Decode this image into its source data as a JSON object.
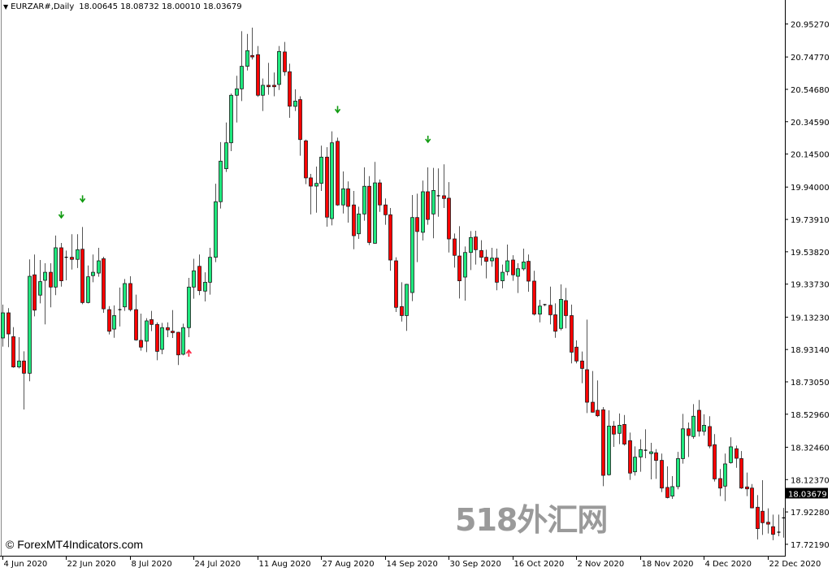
{
  "header": {
    "symbol": "EURZAR#,Daily",
    "ohlc": "18.00645 18.08732 18.00010 18.03679"
  },
  "copyright": "© ForexMT4Indicators.com",
  "watermark": "518外汇网",
  "colors": {
    "bull": "#1ee87d",
    "bear": "#ff0000",
    "outline": "#1a1a1a",
    "wick": "#555555",
    "signal_sell": "#109a10",
    "signal_buy": "#ff2040",
    "price_tag_bg": "#000000"
  },
  "chart_data": {
    "type": "candlestick",
    "title": "EURZAR#,Daily",
    "current_price": "18.03679",
    "y_ticks": [
      "20.95270",
      "20.74770",
      "20.54680",
      "20.34590",
      "20.14500",
      "19.94000",
      "19.73910",
      "19.53820",
      "19.33730",
      "19.13230",
      "18.93140",
      "18.73050",
      "18.52960",
      "18.32460",
      "18.12370",
      "17.92280",
      "17.72190"
    ],
    "x_tick_labels": [
      "4 Jun 2020",
      "22 Jun 2020",
      "8 Jul 2020",
      "24 Jul 2020",
      "11 Aug 2020",
      "27 Aug 2020",
      "14 Sep 2020",
      "30 Sep 2020",
      "16 Oct 2020",
      "2 Nov 2020",
      "18 Nov 2020",
      "4 Dec 2020",
      "22 Dec 2020"
    ],
    "x_tick_every_bars": 12,
    "ohlc": [
      [
        19.003,
        19.21,
        18.949,
        19.159
      ],
      [
        19.159,
        19.188,
        18.946,
        19.028
      ],
      [
        19.011,
        19.07,
        18.818,
        18.823
      ],
      [
        18.823,
        19.008,
        18.814,
        18.86
      ],
      [
        18.86,
        18.92,
        18.559,
        18.784
      ],
      [
        18.784,
        19.491,
        18.734,
        19.386
      ],
      [
        19.395,
        19.521,
        19.137,
        19.176
      ],
      [
        19.269,
        19.487,
        19.218,
        19.353
      ],
      [
        19.361,
        19.467,
        19.087,
        19.411
      ],
      [
        19.411,
        19.467,
        19.193,
        19.319
      ],
      [
        19.319,
        19.639,
        19.269,
        19.563
      ],
      [
        19.563,
        19.593,
        19.322,
        19.358
      ],
      [
        19.504,
        19.546,
        19.361,
        19.502
      ],
      [
        19.504,
        19.647,
        19.428,
        19.491
      ],
      [
        19.491,
        19.647,
        19.437,
        19.551
      ],
      [
        19.554,
        19.692,
        19.213,
        19.223
      ],
      [
        19.223,
        19.453,
        19.218,
        19.383
      ],
      [
        19.39,
        19.521,
        19.349,
        19.411
      ],
      [
        19.406,
        19.563,
        19.383,
        19.482
      ],
      [
        19.495,
        19.507,
        19.159,
        19.184
      ],
      [
        19.179,
        19.201,
        19.025,
        19.045
      ],
      [
        19.058,
        19.205,
        19.004,
        19.142
      ],
      [
        19.179,
        19.316,
        19.075,
        19.177
      ],
      [
        19.196,
        19.369,
        19.171,
        19.341
      ],
      [
        19.341,
        19.386,
        19.168,
        19.179
      ],
      [
        19.179,
        19.272,
        18.986,
        18.991
      ],
      [
        18.988,
        19.154,
        18.924,
        18.946
      ],
      [
        18.983,
        19.126,
        18.915,
        19.109
      ],
      [
        19.117,
        19.171,
        19.046,
        19.087
      ],
      [
        19.087,
        19.1,
        18.865,
        18.92
      ],
      [
        18.932,
        19.097,
        18.902,
        19.067
      ],
      [
        19.067,
        19.1,
        19.008,
        19.053
      ],
      [
        19.045,
        19.176,
        19.003,
        19.036
      ],
      [
        19.038,
        19.041,
        18.835,
        18.898
      ],
      [
        18.902,
        19.092,
        18.895,
        19.067
      ],
      [
        19.067,
        19.376,
        19.008,
        19.319
      ],
      [
        19.319,
        19.495,
        19.247,
        19.42
      ],
      [
        19.448,
        19.521,
        19.269,
        19.297
      ],
      [
        19.294,
        19.411,
        19.23,
        19.349
      ],
      [
        19.349,
        19.563,
        19.272,
        19.504
      ],
      [
        19.504,
        19.961,
        19.474,
        19.849
      ],
      [
        19.849,
        20.219,
        19.807,
        20.101
      ],
      [
        20.054,
        20.341,
        20.034,
        20.215
      ],
      [
        20.215,
        20.521,
        20.163,
        20.51
      ],
      [
        20.51,
        20.631,
        20.341,
        20.55
      ],
      [
        20.55,
        20.908,
        20.474,
        20.69
      ],
      [
        20.69,
        20.891,
        20.664,
        20.787
      ],
      [
        20.757,
        20.93,
        20.732,
        20.748
      ],
      [
        20.762,
        20.816,
        20.5,
        20.51
      ],
      [
        20.51,
        20.614,
        20.412,
        20.572
      ],
      [
        20.572,
        20.711,
        20.513,
        20.563
      ],
      [
        20.572,
        20.651,
        20.504,
        20.563
      ],
      [
        20.577,
        20.816,
        20.543,
        20.782
      ],
      [
        20.779,
        20.841,
        20.631,
        20.656
      ],
      [
        20.656,
        20.706,
        20.37,
        20.442
      ],
      [
        20.441,
        20.547,
        20.412,
        20.474
      ],
      [
        20.483,
        20.504,
        20.135,
        20.235
      ],
      [
        20.227,
        20.235,
        19.958,
        19.997
      ],
      [
        19.997,
        20.022,
        19.77,
        19.946
      ],
      [
        19.946,
        20.067,
        19.781,
        19.963
      ],
      [
        19.963,
        20.197,
        19.916,
        20.126
      ],
      [
        20.126,
        20.188,
        19.694,
        19.753
      ],
      [
        19.744,
        20.286,
        19.702,
        20.215
      ],
      [
        20.224,
        20.247,
        19.823,
        19.829
      ],
      [
        19.829,
        20.037,
        19.776,
        19.929
      ],
      [
        19.929,
        19.975,
        19.719,
        19.82
      ],
      [
        19.829,
        19.916,
        19.554,
        19.638
      ],
      [
        19.65,
        19.818,
        19.618,
        19.773
      ],
      [
        19.773,
        20.062,
        19.731,
        19.945
      ],
      [
        19.945,
        20.008,
        19.58,
        19.596
      ],
      [
        19.591,
        20.096,
        19.588,
        19.966
      ],
      [
        19.966,
        19.987,
        19.786,
        19.829
      ],
      [
        19.829,
        19.869,
        19.706,
        19.768
      ],
      [
        19.768,
        19.81,
        19.42,
        19.487
      ],
      [
        19.482,
        19.504,
        19.164,
        19.193
      ],
      [
        19.198,
        19.349,
        19.105,
        19.142
      ],
      [
        19.142,
        19.339,
        19.047,
        19.336
      ],
      [
        19.285,
        19.891,
        19.232,
        19.751
      ],
      [
        19.751,
        19.899,
        19.474,
        19.664
      ],
      [
        19.659,
        19.98,
        19.608,
        19.911
      ],
      [
        19.911,
        20.062,
        19.706,
        19.739
      ],
      [
        19.773,
        20.059,
        19.622,
        19.919
      ],
      [
        19.886,
        20.056,
        19.756,
        19.884
      ],
      [
        19.886,
        20.081,
        19.81,
        19.869
      ],
      [
        19.871,
        19.971,
        19.534,
        19.618
      ],
      [
        19.618,
        19.652,
        19.44,
        19.516
      ],
      [
        19.512,
        19.697,
        19.248,
        19.358
      ],
      [
        19.381,
        19.571,
        19.235,
        19.534
      ],
      [
        19.534,
        19.667,
        19.425,
        19.627
      ],
      [
        19.63,
        19.669,
        19.459,
        19.551
      ],
      [
        19.546,
        19.61,
        19.453,
        19.504
      ],
      [
        19.504,
        19.551,
        19.373,
        19.479
      ],
      [
        19.482,
        19.563,
        19.445,
        19.499
      ],
      [
        19.499,
        19.558,
        19.299,
        19.349
      ],
      [
        19.358,
        19.459,
        19.311,
        19.411
      ],
      [
        19.415,
        19.583,
        19.391,
        19.482
      ],
      [
        19.487,
        19.517,
        19.358,
        19.395
      ],
      [
        19.386,
        19.467,
        19.282,
        19.433
      ],
      [
        19.432,
        19.558,
        19.42,
        19.475
      ],
      [
        19.479,
        19.521,
        19.29,
        19.356
      ],
      [
        19.356,
        19.42,
        19.142,
        19.151
      ],
      [
        19.151,
        19.24,
        19.1,
        19.201
      ],
      [
        19.21,
        19.215,
        19.201,
        19.208
      ],
      [
        19.206,
        19.322,
        19.087,
        19.147
      ],
      [
        19.147,
        19.218,
        19.004,
        19.045
      ],
      [
        19.062,
        19.336,
        19.05,
        19.243
      ],
      [
        19.235,
        19.314,
        19.063,
        19.142
      ],
      [
        19.142,
        19.21,
        18.845,
        18.915
      ],
      [
        18.946,
        18.988,
        18.845,
        18.86
      ],
      [
        18.86,
        18.919,
        18.722,
        18.814
      ],
      [
        18.806,
        19.117,
        18.537,
        18.604
      ],
      [
        18.604,
        18.798,
        18.54,
        18.542
      ],
      [
        18.554,
        18.739,
        18.512,
        18.52
      ],
      [
        18.557,
        18.574,
        18.083,
        18.15
      ],
      [
        18.154,
        18.554,
        18.148,
        18.456
      ],
      [
        18.456,
        18.487,
        18.327,
        18.406
      ],
      [
        18.411,
        18.534,
        18.344,
        18.461
      ],
      [
        18.466,
        18.525,
        18.335,
        18.344
      ],
      [
        18.365,
        18.416,
        18.122,
        18.164
      ],
      [
        18.172,
        18.33,
        18.148,
        18.263
      ],
      [
        18.264,
        18.374,
        18.172,
        18.31
      ],
      [
        18.306,
        18.436,
        18.256,
        18.304
      ],
      [
        18.285,
        18.352,
        18.125,
        18.296
      ],
      [
        18.29,
        18.313,
        18.128,
        18.243
      ],
      [
        18.243,
        18.285,
        18.046,
        18.071
      ],
      [
        18.075,
        18.206,
        18.007,
        18.012
      ],
      [
        18.021,
        18.145,
        18.004,
        18.08
      ],
      [
        18.08,
        18.296,
        18.063,
        18.254
      ],
      [
        18.254,
        18.532,
        18.223,
        18.439
      ],
      [
        18.439,
        18.478,
        18.264,
        18.397
      ],
      [
        18.391,
        18.592,
        18.377,
        18.517
      ],
      [
        18.554,
        18.618,
        18.391,
        18.424
      ],
      [
        18.423,
        18.529,
        18.397,
        18.461
      ],
      [
        18.453,
        18.517,
        18.318,
        18.332
      ],
      [
        18.34,
        18.406,
        18.112,
        18.128
      ],
      [
        18.13,
        18.189,
        18.021,
        18.071
      ],
      [
        18.083,
        18.285,
        17.99,
        18.221
      ],
      [
        18.229,
        18.386,
        18.223,
        18.327
      ],
      [
        18.315,
        18.335,
        18.197,
        18.256
      ],
      [
        18.254,
        18.301,
        18.066,
        18.071
      ],
      [
        18.078,
        18.167,
        18.021,
        18.066
      ],
      [
        18.071,
        18.096,
        17.945,
        17.948
      ],
      [
        17.952,
        18.027,
        17.752,
        17.819
      ],
      [
        17.927,
        18.12,
        17.78,
        17.856
      ],
      [
        17.859,
        17.945,
        17.789,
        17.847
      ],
      [
        17.831,
        17.906,
        17.747,
        17.784
      ],
      [
        17.797,
        17.906,
        17.772,
        17.795
      ],
      [
        17.882,
        17.948,
        17.763,
        17.886
      ]
    ],
    "signals": [
      {
        "bar": 11,
        "type": "sell"
      },
      {
        "bar": 15,
        "type": "sell"
      },
      {
        "bar": 63,
        "type": "sell"
      },
      {
        "bar": 80,
        "type": "sell"
      },
      {
        "bar": 35,
        "type": "buy"
      }
    ],
    "grid": false
  }
}
